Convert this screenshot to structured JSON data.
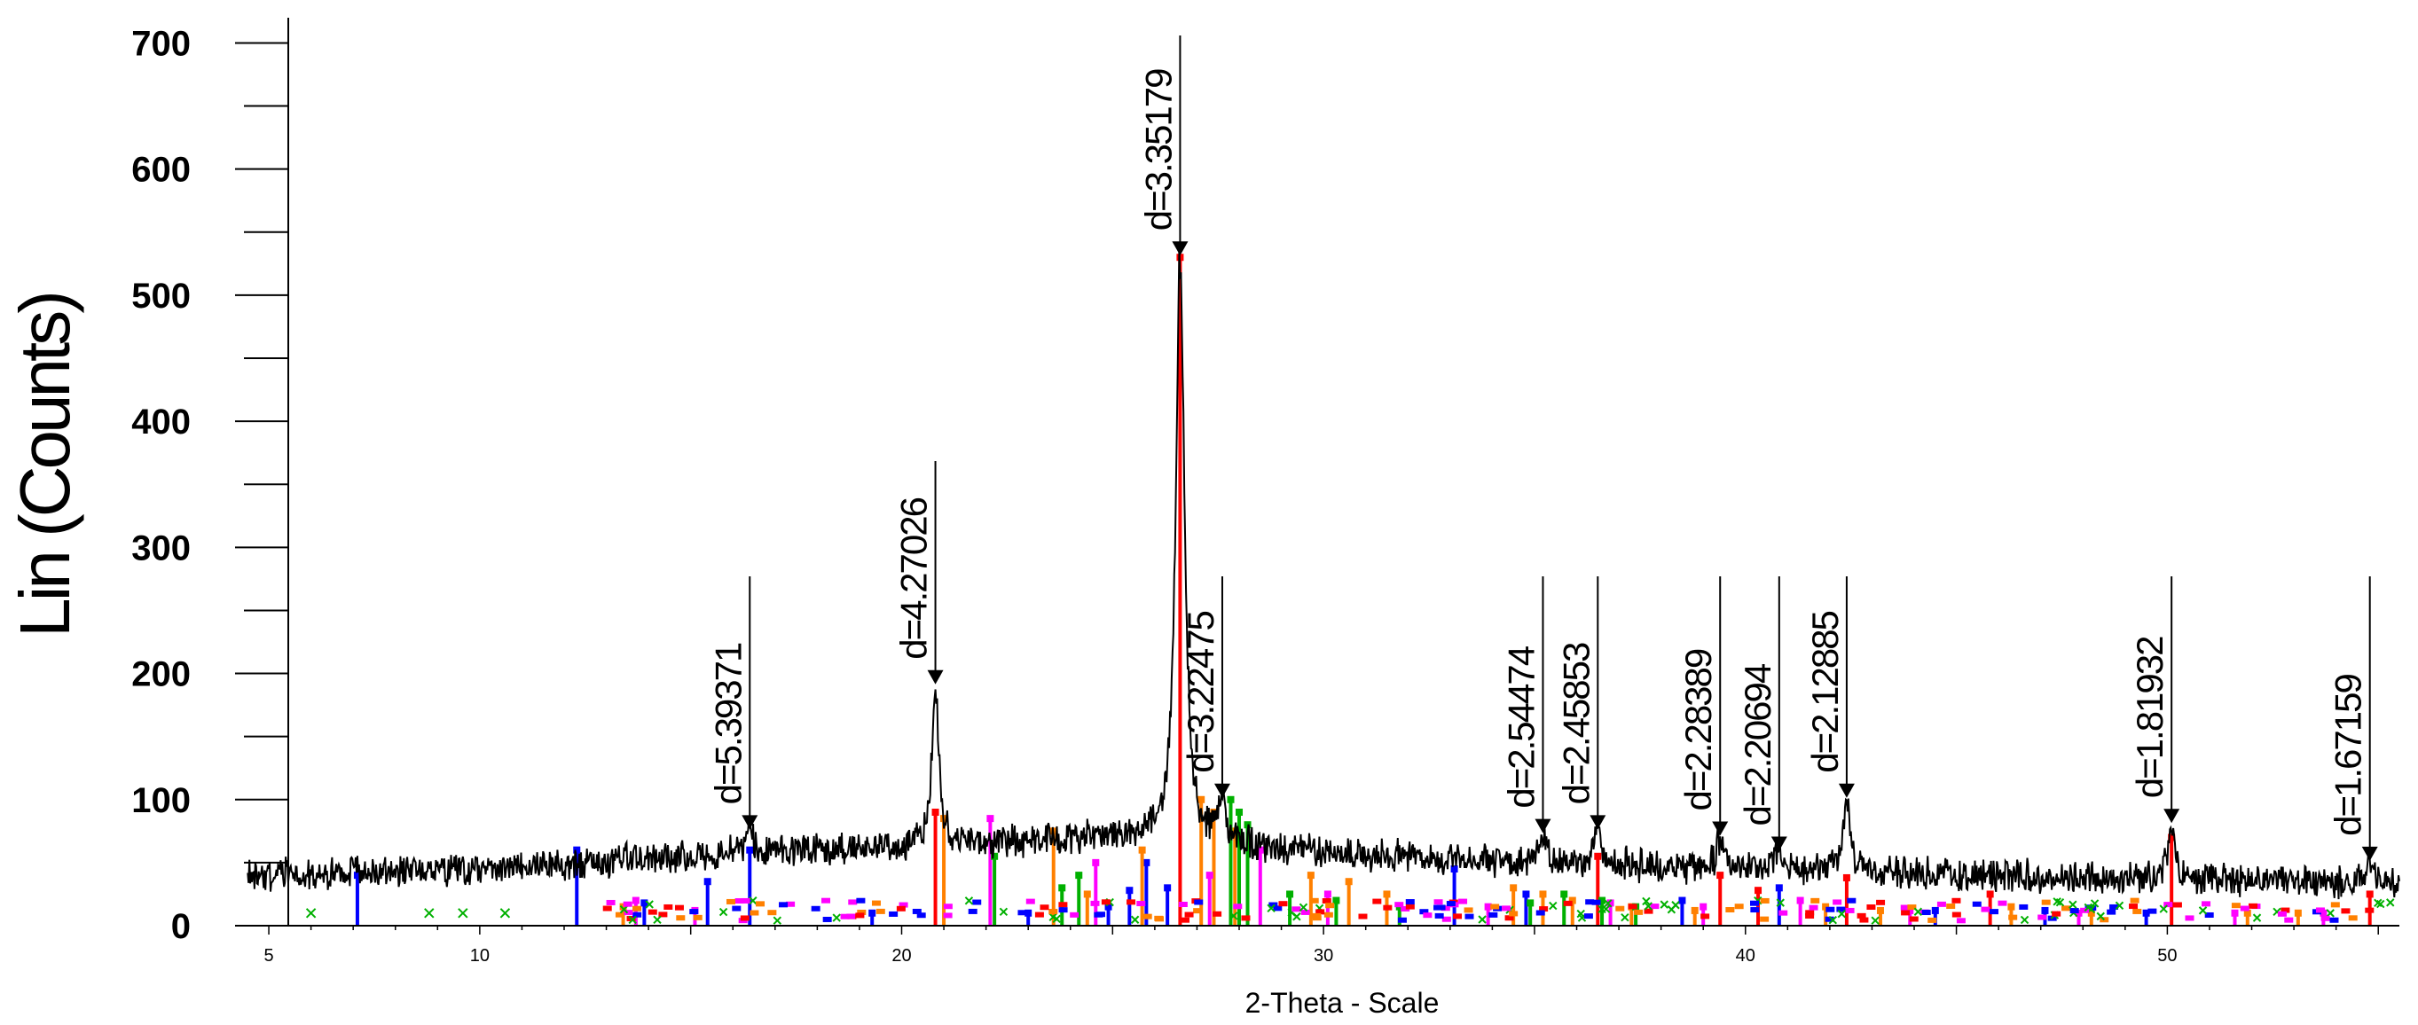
{
  "chart_data": {
    "type": "line",
    "xlabel": "2-Theta - Scale",
    "ylabel": "Lin (Counts)",
    "xlim": [
      4.2,
      55.5
    ],
    "ylim": [
      0,
      720
    ],
    "x_ticks": [
      5,
      10,
      20,
      30,
      40,
      50
    ],
    "y_ticks": [
      0,
      100,
      200,
      300,
      400,
      500,
      600,
      700
    ],
    "grid": false,
    "background_level": [
      [
        4.5,
        40
      ],
      [
        10,
        45
      ],
      [
        15,
        55
      ],
      [
        20,
        62
      ],
      [
        25,
        70
      ],
      [
        27,
        65
      ],
      [
        30,
        58
      ],
      [
        35,
        50
      ],
      [
        40,
        45
      ],
      [
        45,
        40
      ],
      [
        50,
        37
      ],
      [
        55.5,
        34
      ]
    ],
    "peaks": [
      {
        "label": "d=5.39371",
        "two_theta": 16.4,
        "intensity": 75
      },
      {
        "label": "d=4.27026",
        "two_theta": 20.8,
        "intensity": 190
      },
      {
        "label": "d=3.35179",
        "two_theta": 26.6,
        "intensity": 530
      },
      {
        "label": "d=3.22475",
        "two_theta": 27.6,
        "intensity": 100
      },
      {
        "label": "d=2.54474",
        "two_theta": 35.2,
        "intensity": 72
      },
      {
        "label": "d=2.45853",
        "two_theta": 36.5,
        "intensity": 75
      },
      {
        "label": "d=2.28389",
        "two_theta": 39.4,
        "intensity": 70
      },
      {
        "label": "d=2.20694",
        "two_theta": 40.8,
        "intensity": 58
      },
      {
        "label": "d=2.12885",
        "two_theta": 42.4,
        "intensity": 100
      },
      {
        "label": "d=1.81932",
        "two_theta": 50.1,
        "intensity": 80
      },
      {
        "label": "d=1.67159",
        "two_theta": 54.8,
        "intensity": 50
      }
    ],
    "reference_phases": [
      {
        "color": "#ff0000",
        "sticks": [
          [
            20.8,
            90
          ],
          [
            26.6,
            530
          ],
          [
            36.5,
            55
          ],
          [
            39.4,
            40
          ],
          [
            40.3,
            28
          ],
          [
            42.4,
            38
          ],
          [
            45.8,
            25
          ],
          [
            50.1,
            70
          ],
          [
            54.8,
            25
          ]
        ]
      },
      {
        "color": "#0000ff",
        "sticks": [
          [
            7.1,
            40
          ],
          [
            12.3,
            60
          ],
          [
            13.9,
            18
          ],
          [
            15.4,
            35
          ],
          [
            16.4,
            60
          ],
          [
            19.3,
            10
          ],
          [
            23.0,
            10
          ],
          [
            24.9,
            15
          ],
          [
            25.4,
            28
          ],
          [
            25.8,
            50
          ],
          [
            26.3,
            30
          ],
          [
            33.1,
            45
          ],
          [
            34.8,
            25
          ],
          [
            38.5,
            20
          ],
          [
            40.8,
            30
          ],
          [
            44.5,
            12
          ],
          [
            47.1,
            12
          ],
          [
            49.5,
            10
          ]
        ]
      },
      {
        "color": "#ff8000",
        "sticks": [
          [
            13.4,
            15
          ],
          [
            21.0,
            85
          ],
          [
            23.6,
            75
          ],
          [
            24.4,
            25
          ],
          [
            25.7,
            60
          ],
          [
            27.1,
            100
          ],
          [
            27.4,
            90
          ],
          [
            27.9,
            75
          ],
          [
            29.7,
            40
          ],
          [
            30.6,
            35
          ],
          [
            31.5,
            25
          ],
          [
            34.5,
            30
          ],
          [
            35.2,
            25
          ],
          [
            35.9,
            20
          ],
          [
            37.3,
            15
          ],
          [
            38.8,
            12
          ],
          [
            41.9,
            15
          ],
          [
            43.2,
            12
          ],
          [
            46.3,
            15
          ],
          [
            48.2,
            10
          ],
          [
            51.9,
            10
          ],
          [
            53.1,
            10
          ]
        ]
      },
      {
        "color": "#ff00ff",
        "sticks": [
          [
            13.7,
            20
          ],
          [
            15.1,
            12
          ],
          [
            22.1,
            85
          ],
          [
            24.6,
            50
          ],
          [
            27.3,
            40
          ],
          [
            28.5,
            60
          ],
          [
            30.1,
            25
          ],
          [
            33.9,
            15
          ],
          [
            36.8,
            18
          ],
          [
            39.0,
            15
          ],
          [
            41.3,
            20
          ],
          [
            43.9,
            12
          ],
          [
            47.9,
            10
          ],
          [
            51.6,
            10
          ],
          [
            53.7,
            10
          ]
        ]
      },
      {
        "color": "#00b000",
        "sticks": [
          [
            22.2,
            55
          ],
          [
            23.8,
            30
          ],
          [
            24.2,
            40
          ],
          [
            27.8,
            100
          ],
          [
            28.0,
            90
          ],
          [
            28.2,
            80
          ],
          [
            29.2,
            25
          ],
          [
            30.3,
            20
          ],
          [
            31.8,
            15
          ],
          [
            34.9,
            18
          ],
          [
            35.7,
            25
          ],
          [
            36.6,
            20
          ],
          [
            37.4,
            15
          ]
        ]
      }
    ]
  }
}
